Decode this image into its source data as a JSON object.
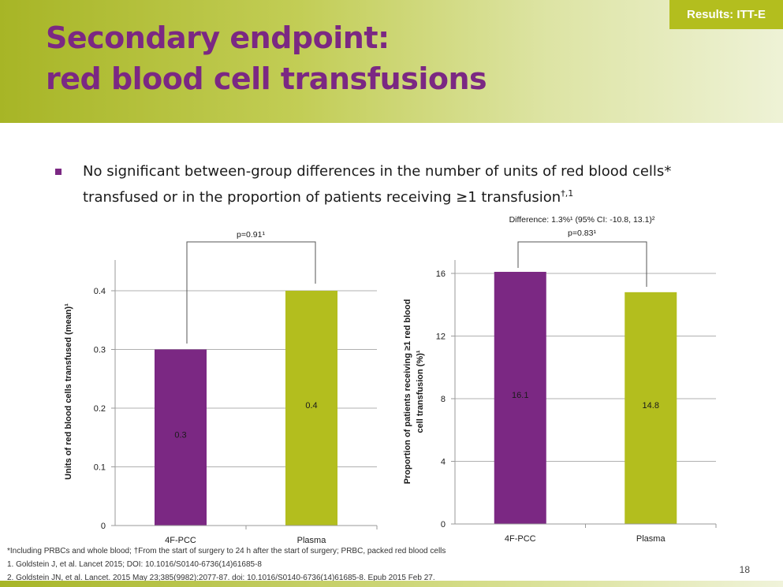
{
  "slide": {
    "title_line1": "Secondary endpoint:",
    "title_line2": "red blood cell transfusions",
    "badge": "Results: ITT-E",
    "bullet": "No significant between-group differences in the number of units of red blood cells* transfused or in the proportion of patients receiving ≥1 transfusion",
    "bullet_sup": "†,1",
    "footnote_1": "*Including PRBCs and whole blood; †From the start of surgery to 24 h after the start of surgery; PRBC, packed red blood cells",
    "reference_1": "1. Goldstein J, et al. Lancet 2015; DOI: 10.1016/S0140-6736(14)61685-8",
    "reference_2": "2. Goldstein JN, et al. Lancet. 2015 May 23;385(9982):2077-87. doi: 10.1016/S0140-6736(14)61685-8. Epub 2015 Feb 27.",
    "page_number": "18"
  },
  "colors": {
    "purple": "#7b2883",
    "green": "#b3be1e",
    "grid": "#b0b0b0"
  },
  "chart_data": [
    {
      "type": "bar",
      "categories": [
        "4F-PCC",
        "Plasma"
      ],
      "values": [
        0.3,
        0.4
      ],
      "value_labels": [
        "0.3",
        "0.4"
      ],
      "ylabel": "Units of red blood cells transfused (mean)¹",
      "ylim": [
        0,
        0.4
      ],
      "yticks": [
        0,
        0.1,
        0.2,
        0.3,
        0.4
      ],
      "ytick_labels": [
        "0",
        "0.1",
        "0.2",
        "0.3",
        "0.4"
      ],
      "grid": true,
      "annotations": [
        "p=0.91¹"
      ]
    },
    {
      "type": "bar",
      "categories": [
        "4F-PCC",
        "Plasma"
      ],
      "values": [
        16.1,
        14.8
      ],
      "value_labels": [
        "16.1",
        "14.8"
      ],
      "ylabel_line1": "Proportion of patients receiving ≥1 red blood",
      "ylabel_line2": "cell transfusion (%)¹",
      "ylim": [
        0,
        16
      ],
      "yticks": [
        0,
        4,
        8,
        12,
        16
      ],
      "ytick_labels": [
        "0",
        "4",
        "8",
        "12",
        "16"
      ],
      "grid": true,
      "annotations": [
        "Difference: 1.3%¹ (95% CI: -10.8, 13.1)²",
        "p=0.83¹"
      ]
    }
  ]
}
